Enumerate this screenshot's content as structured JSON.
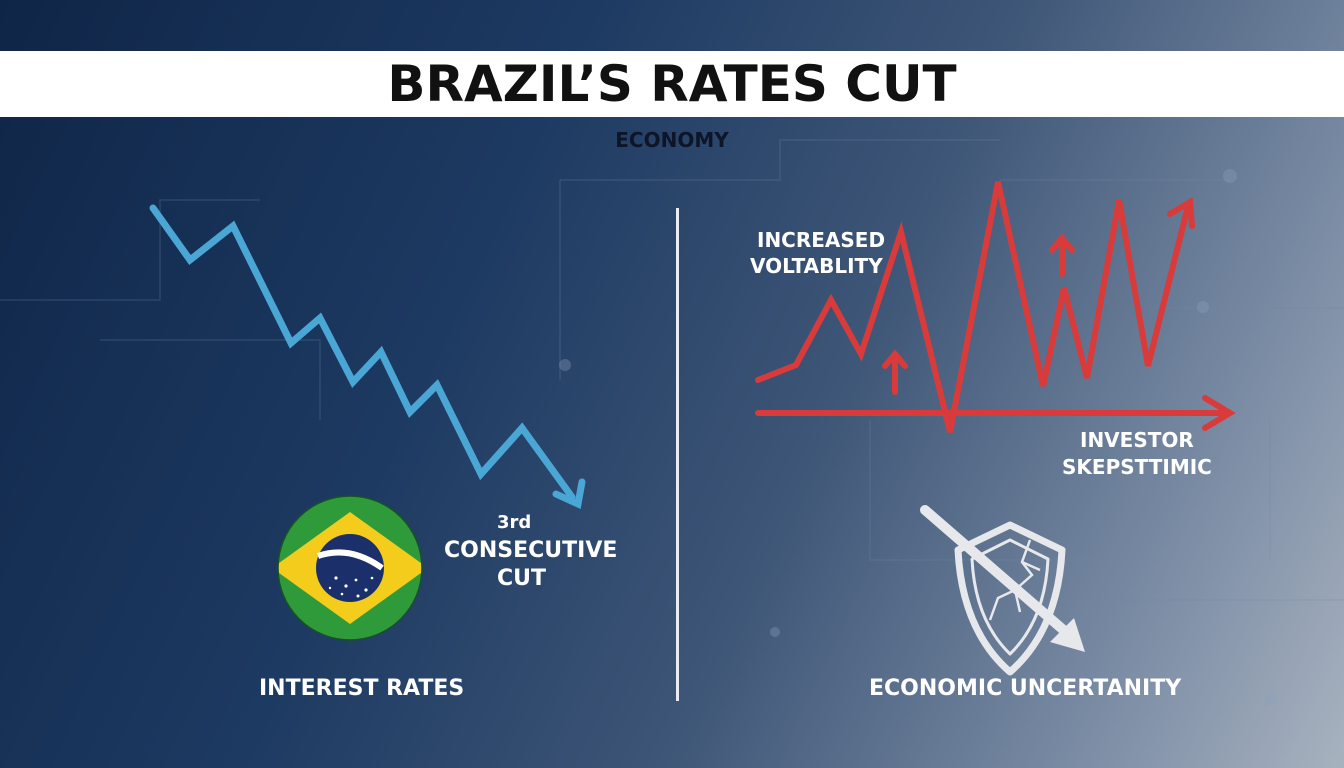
{
  "title": "BRAZIL’S RATES CUT",
  "category": "ECONOMY",
  "left_panel": {
    "cut_ordinal": "3rd",
    "cut_line1": "CONSECUTIVE",
    "cut_line2": "CUT",
    "label": "INTEREST RATES"
  },
  "right_panel": {
    "volatility_line1": "INCREASED",
    "volatility_line2": "VOLTABLITY",
    "investor_line1": "INVESTOR",
    "investor_line2": "SKEPSTTIMIC",
    "label": "ECONOMIC UNCERTANITY"
  },
  "colors": {
    "title_band": "#ffffff",
    "falling_line": "#4aa6d4",
    "volatility_line": "#d93b3b",
    "divider": "#e9edf3",
    "flag_green": "#2e9a3a",
    "flag_yellow": "#f3cc1c",
    "flag_blue": "#1b2f6b"
  },
  "icons": {
    "falling_arrow": "falling-trend-arrow-icon",
    "volatility": "volatility-zigzag-icon",
    "flag": "brazil-flag-icon",
    "shield": "broken-shield-icon"
  }
}
